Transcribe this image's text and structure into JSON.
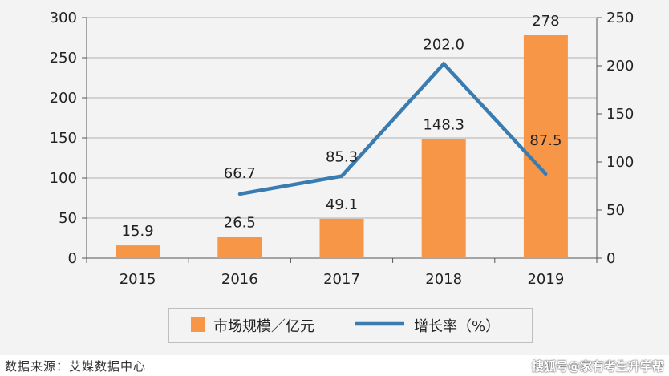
{
  "chart_data": {
    "type": "bar+line",
    "categories": [
      "2015",
      "2016",
      "2017",
      "2018",
      "2019"
    ],
    "series": [
      {
        "name": "市场规模／亿元",
        "type": "bar",
        "axis": "left",
        "values": [
          15.9,
          26.5,
          49.1,
          148.3,
          278
        ],
        "labels": [
          "15.9",
          "26.5",
          "49.1",
          "148.3",
          "278"
        ],
        "color": "#f79646"
      },
      {
        "name": "增长率（%）",
        "type": "line",
        "axis": "right",
        "values": [
          null,
          66.7,
          85.3,
          202.0,
          87.5
        ],
        "labels": [
          "",
          "66.7",
          "85.3",
          "202.0",
          "87.5"
        ],
        "color": "#3a7bb0"
      }
    ],
    "yleft": {
      "lim": [
        0,
        300
      ],
      "ticks": [
        0,
        50,
        100,
        150,
        200,
        250,
        300
      ]
    },
    "yright": {
      "lim": [
        0,
        250
      ],
      "ticks": [
        0,
        50,
        100,
        150,
        200,
        250
      ]
    },
    "grid": true,
    "legend": "bottom"
  },
  "footer": {
    "source": "数据来源：艾媒数据中心",
    "watermark": "搜狐号@家有考生升学帮"
  }
}
